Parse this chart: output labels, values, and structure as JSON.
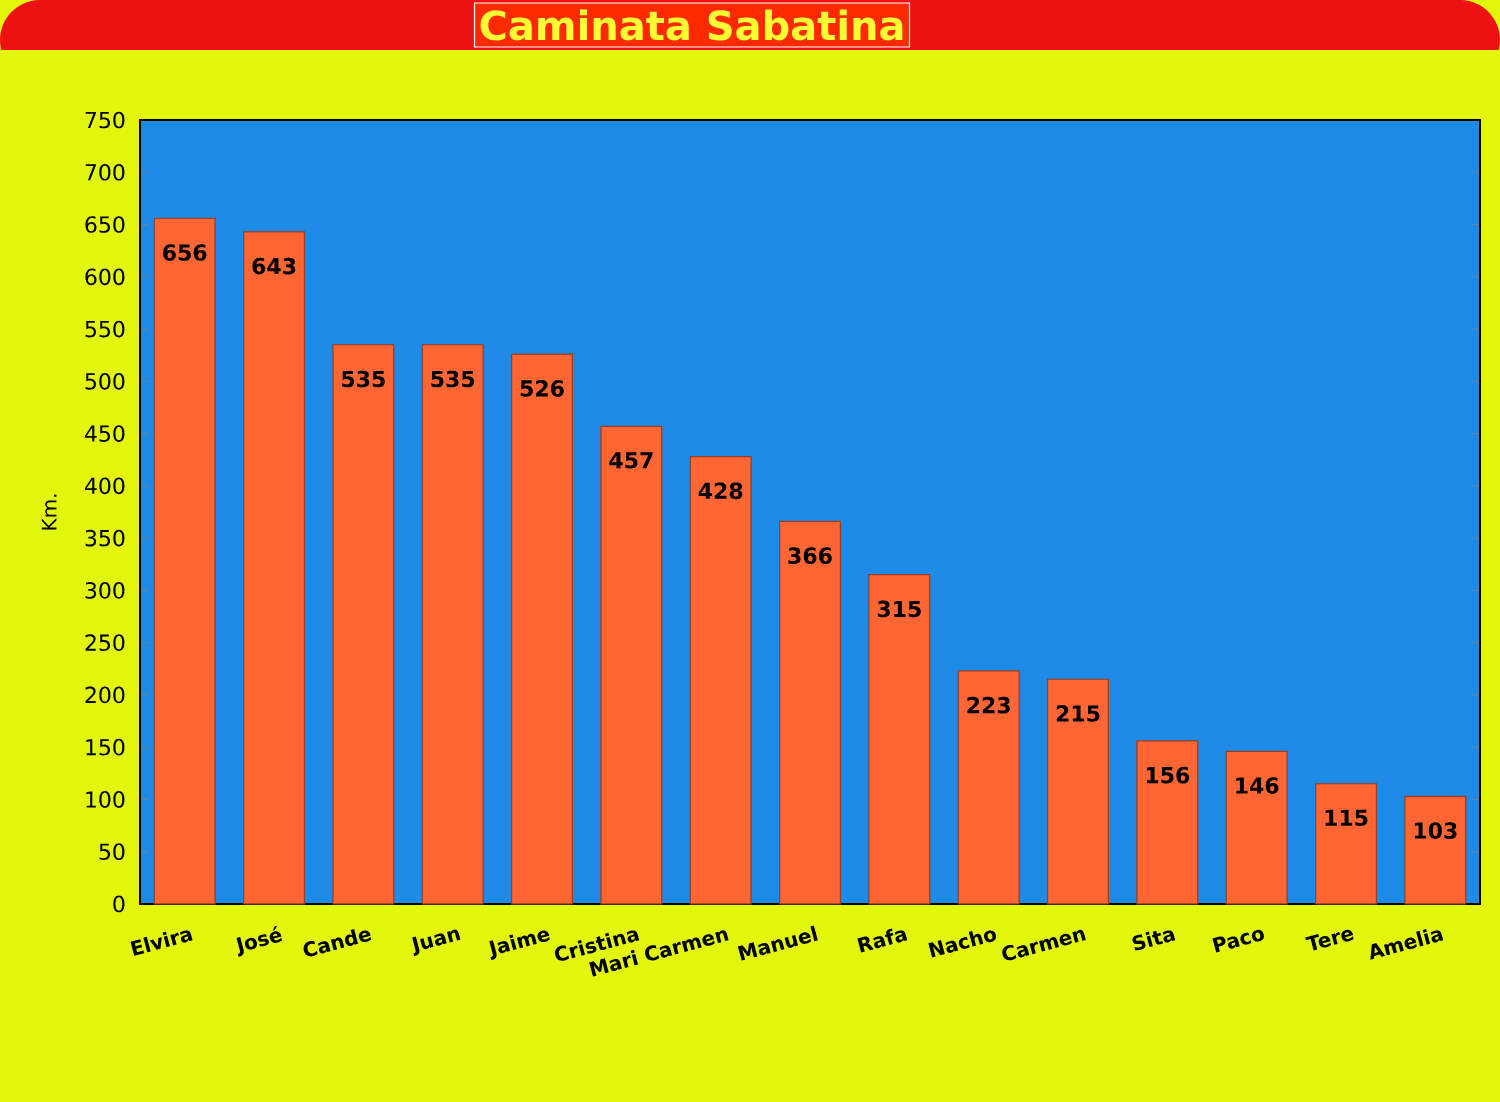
{
  "chart_data": {
    "type": "bar",
    "title": "Caminata Sabatina",
    "ylabel": "Km.",
    "categories": [
      "Elvira",
      "José",
      "Cande",
      "Juan",
      "Jaime",
      "Cristina",
      "Mari Carmen",
      "Manuel",
      "Rafa",
      "Nacho",
      "Carmen",
      "Sita",
      "Paco",
      "Tere",
      "Amelia"
    ],
    "values": [
      656,
      643,
      535,
      535,
      526,
      457,
      428,
      366,
      315,
      223,
      215,
      156,
      146,
      115,
      103
    ],
    "color": "#ff6633",
    "ylim": [
      0,
      750
    ],
    "yticks": [
      0,
      50,
      100,
      150,
      200,
      250,
      300,
      350,
      400,
      450,
      500,
      550,
      600,
      650,
      700,
      750
    ],
    "data_labels": true
  }
}
